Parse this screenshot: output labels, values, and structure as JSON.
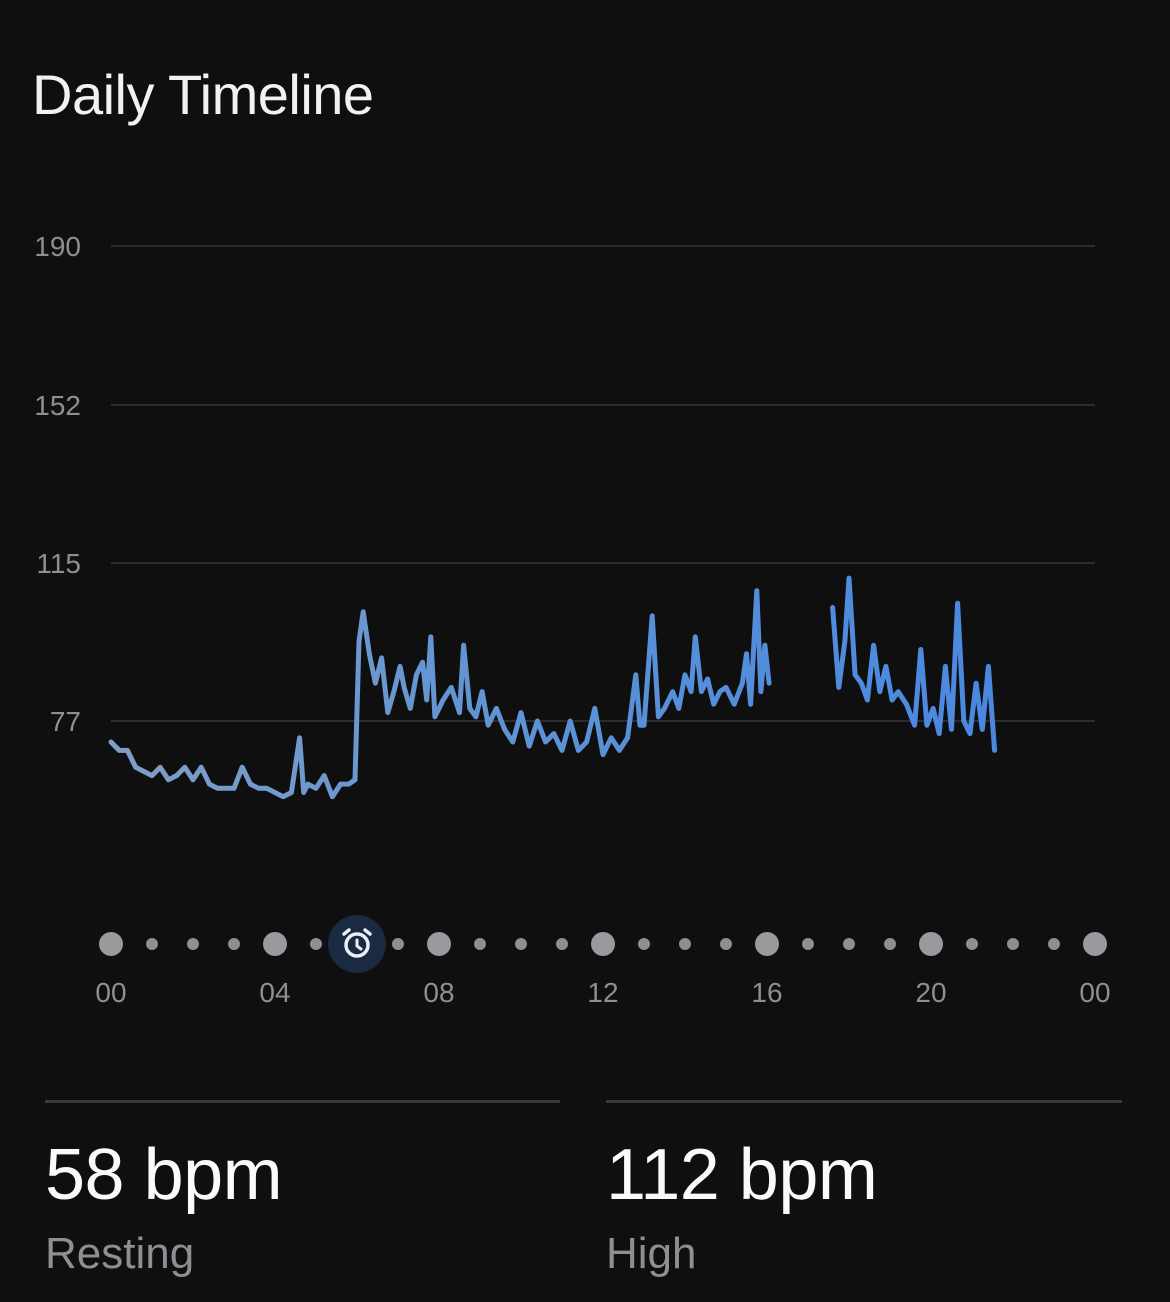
{
  "title": "Daily Timeline",
  "chart_data": {
    "type": "line",
    "y_ticks": [
      "190",
      "152",
      "115",
      "77"
    ],
    "x_ticks": [
      "00",
      "04",
      "08",
      "12",
      "16",
      "20",
      "00"
    ],
    "ylim": [
      77,
      190
    ],
    "xlim": [
      0,
      24
    ],
    "grid": true,
    "line_color": "#4f8fdc",
    "series": [
      {
        "values": [
          [
            0.0,
            72
          ],
          [
            0.2,
            70
          ],
          [
            0.4,
            70
          ],
          [
            0.6,
            66
          ],
          [
            0.8,
            65
          ],
          [
            1.0,
            64
          ],
          [
            1.2,
            66
          ],
          [
            1.4,
            63
          ],
          [
            1.6,
            64
          ],
          [
            1.8,
            66
          ],
          [
            2.0,
            63
          ],
          [
            2.2,
            66
          ],
          [
            2.4,
            62
          ],
          [
            2.6,
            61
          ],
          [
            2.8,
            61
          ],
          [
            3.0,
            61
          ],
          [
            3.2,
            66
          ],
          [
            3.4,
            62
          ],
          [
            3.6,
            61
          ],
          [
            3.8,
            61
          ],
          [
            4.0,
            60
          ],
          [
            4.2,
            59
          ],
          [
            4.4,
            60
          ],
          [
            4.6,
            73
          ],
          [
            4.7,
            60
          ],
          [
            4.8,
            62
          ],
          [
            5.0,
            61
          ],
          [
            5.2,
            64
          ],
          [
            5.4,
            59
          ],
          [
            5.6,
            62
          ],
          [
            5.8,
            62
          ],
          [
            5.95,
            63
          ],
          [
            6.05,
            96
          ],
          [
            6.15,
            103
          ],
          [
            6.3,
            93
          ],
          [
            6.45,
            86
          ],
          [
            6.6,
            92
          ],
          [
            6.75,
            79
          ],
          [
            6.9,
            84
          ],
          [
            7.05,
            90
          ],
          [
            7.15,
            85
          ],
          [
            7.3,
            80
          ],
          [
            7.45,
            88
          ],
          [
            7.6,
            91
          ],
          [
            7.7,
            82
          ],
          [
            7.8,
            97
          ],
          [
            7.9,
            78
          ],
          [
            8.1,
            82
          ],
          [
            8.3,
            85
          ],
          [
            8.5,
            79
          ],
          [
            8.6,
            95
          ],
          [
            8.75,
            80
          ],
          [
            8.9,
            78
          ],
          [
            9.05,
            84
          ],
          [
            9.2,
            76
          ],
          [
            9.4,
            80
          ],
          [
            9.6,
            75
          ],
          [
            9.8,
            72
          ],
          [
            10.0,
            79
          ],
          [
            10.2,
            71
          ],
          [
            10.4,
            77
          ],
          [
            10.6,
            72
          ],
          [
            10.8,
            74
          ],
          [
            11.0,
            70
          ],
          [
            11.2,
            77
          ],
          [
            11.4,
            70
          ],
          [
            11.6,
            72
          ],
          [
            11.8,
            80
          ],
          [
            12.0,
            69
          ],
          [
            12.2,
            73
          ],
          [
            12.4,
            70
          ],
          [
            12.6,
            73
          ],
          [
            12.8,
            88
          ],
          [
            12.9,
            76
          ],
          [
            13.0,
            76
          ],
          [
            13.2,
            102
          ],
          [
            13.35,
            78
          ],
          [
            13.5,
            80
          ],
          [
            13.7,
            84
          ],
          [
            13.85,
            80
          ],
          [
            14.0,
            88
          ],
          [
            14.15,
            84
          ],
          [
            14.25,
            97
          ],
          [
            14.4,
            84
          ],
          [
            14.55,
            87
          ],
          [
            14.7,
            81
          ],
          [
            14.85,
            84
          ],
          [
            15.0,
            85
          ],
          [
            15.2,
            81
          ],
          [
            15.4,
            86
          ],
          [
            15.5,
            93
          ],
          [
            15.6,
            81
          ],
          [
            15.75,
            108
          ],
          [
            15.85,
            84
          ],
          [
            15.95,
            95
          ],
          [
            16.05,
            86
          ],
          [
            17.6,
            104
          ],
          [
            17.75,
            85
          ],
          [
            17.9,
            96
          ],
          [
            18.0,
            111
          ],
          [
            18.15,
            88
          ],
          [
            18.3,
            86
          ],
          [
            18.45,
            82
          ],
          [
            18.6,
            95
          ],
          [
            18.75,
            84
          ],
          [
            18.9,
            90
          ],
          [
            19.05,
            82
          ],
          [
            19.2,
            84
          ],
          [
            19.4,
            81
          ],
          [
            19.6,
            76
          ],
          [
            19.75,
            94
          ],
          [
            19.9,
            76
          ],
          [
            20.05,
            80
          ],
          [
            20.2,
            74
          ],
          [
            20.35,
            90
          ],
          [
            20.5,
            75
          ],
          [
            20.65,
            105
          ],
          [
            20.8,
            77
          ],
          [
            20.95,
            74
          ],
          [
            21.1,
            86
          ],
          [
            21.25,
            75
          ],
          [
            21.4,
            90
          ],
          [
            21.55,
            70
          ]
        ]
      }
    ]
  },
  "timeline": {
    "alarm_icon": "alarm-clock-icon",
    "alarm_hour": 6,
    "accent": "#1a2a40"
  },
  "stats": {
    "resting_value": "58 bpm",
    "resting_label": "Resting",
    "high_value": "112 bpm",
    "high_label": "High"
  }
}
